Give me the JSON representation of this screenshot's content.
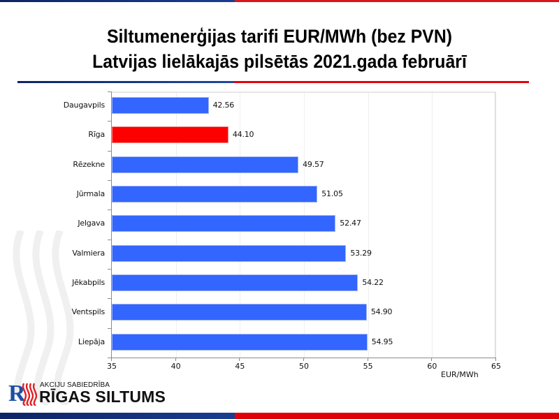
{
  "slide": {
    "title_line1": "Siltumenerģijas tarifi EUR/MWh (bez PVN)",
    "title_line2": "Latvijas lielākajās pilsētās 2021.gada februārī",
    "colors": {
      "brand_blue": "#1a3d8f",
      "brand_red": "#e0000a",
      "bar_default": "#3366ff",
      "bar_highlight": "#ff0000"
    }
  },
  "logo": {
    "mark": "R",
    "subtitle": "AKCIJU SABIEDRĪBA",
    "name": "RĪGAS SILTUMS"
  },
  "chart_data": {
    "type": "bar",
    "orientation": "horizontal",
    "title": "Siltumenerģijas tarifi EUR/MWh (bez PVN) Latvijas lielākajās pilsētās 2021.gada februārī",
    "xlabel": "EUR/MWh",
    "ylabel": "",
    "xlim": [
      35,
      65
    ],
    "xticks": [
      "35",
      "40",
      "45",
      "50",
      "55",
      "60",
      "65"
    ],
    "grid": true,
    "legend": null,
    "categories": [
      "Daugavpils",
      "Rīga",
      "Rēzekne",
      "Jūrmala",
      "Jelgava",
      "Valmiera",
      "Jēkabpils",
      "Ventspils",
      "Liepāja"
    ],
    "values": [
      42.56,
      44.1,
      49.57,
      51.05,
      52.47,
      53.29,
      54.22,
      54.9,
      54.95
    ],
    "value_labels": [
      "42.56",
      "44.10",
      "49.57",
      "51.05",
      "52.47",
      "53.29",
      "54.22",
      "54.90",
      "54.95"
    ],
    "highlight": "Rīga",
    "bar_colors": [
      "#3366ff",
      "#ff0000",
      "#3366ff",
      "#3366ff",
      "#3366ff",
      "#3366ff",
      "#3366ff",
      "#3366ff",
      "#3366ff"
    ]
  }
}
